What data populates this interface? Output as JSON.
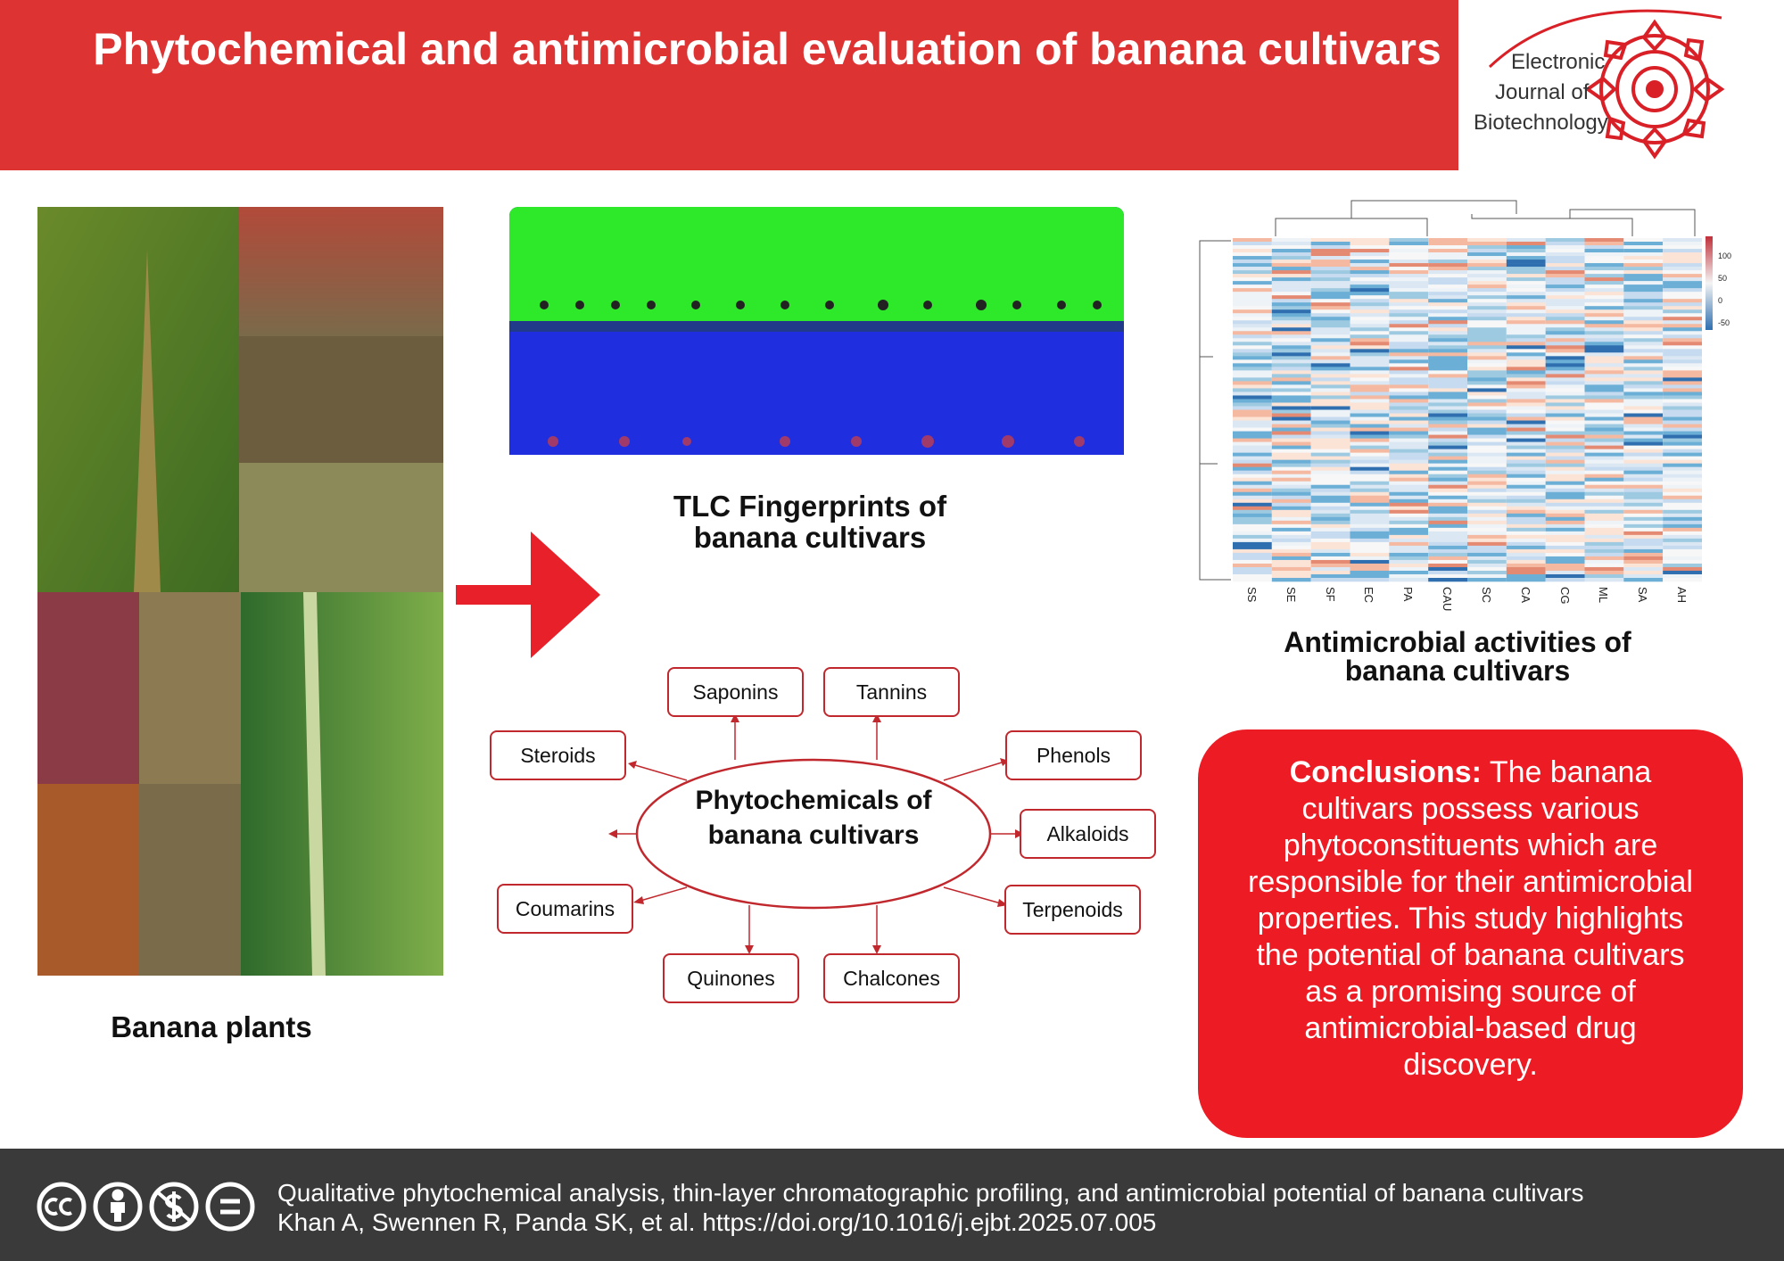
{
  "header": {
    "title": "Phytochemical and antimicrobial evaluation of banana cultivars",
    "journal": [
      "Electronic",
      "Journal of",
      "Biotechnology"
    ]
  },
  "panels": {
    "plants_caption": "Banana plants",
    "tlc_caption": "TLC Fingerprints of banana cultivars",
    "antimicrobial_caption": "Antimicrobial activities of banana cultivars"
  },
  "heatmap": {
    "columns": [
      "SS",
      "SE",
      "SF",
      "EC",
      "PA",
      "CAU",
      "SC",
      "CA",
      "CG",
      "ML",
      "SA",
      "AH"
    ],
    "legend_ticks": [
      "100",
      "50",
      "0",
      "-50"
    ]
  },
  "phytochemicals": {
    "center": "Phytochemicals of banana cultivars",
    "items": [
      "Saponins",
      "Tannins",
      "Steroids",
      "Phenols",
      "Alkaloids",
      "Coumarins",
      "Terpenoids",
      "Quinones",
      "Chalcones"
    ]
  },
  "conclusions": {
    "label": "Conclusions:",
    "text": "The banana cultivars possess various phytoconstituents which are responsible for their antimicrobial properties. This study highlights the potential of banana cultivars as a promising source of antimicrobial-based drug discovery."
  },
  "footer": {
    "citation": "Qualitative phytochemical analysis, thin-layer chromatographic profiling, and antimicrobial potential of banana cultivars",
    "authors": "Khan A, Swennen R, Panda SK, et al. https://doi.org/10.1016/j.ejbt.2025.07.005"
  }
}
